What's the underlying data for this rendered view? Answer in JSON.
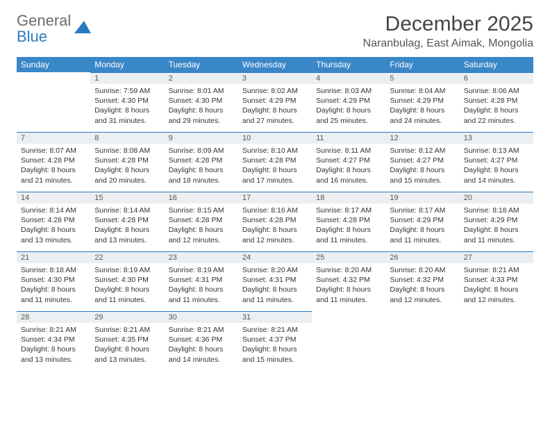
{
  "brand": {
    "word1": "General",
    "word2": "Blue",
    "logo_color": "#2a7ac0",
    "text_color": "#6b6b6b"
  },
  "title": "December 2025",
  "location": "Naranbulag, East Aimak, Mongolia",
  "colors": {
    "header_bg": "#3a87c8",
    "daynum_bg": "#eceff1",
    "border": "#2a7ac0"
  },
  "weekdays": [
    "Sunday",
    "Monday",
    "Tuesday",
    "Wednesday",
    "Thursday",
    "Friday",
    "Saturday"
  ],
  "cells": [
    {
      "n": "",
      "sr": "",
      "ss": "",
      "dl": ""
    },
    {
      "n": "1",
      "sr": "Sunrise: 7:59 AM",
      "ss": "Sunset: 4:30 PM",
      "dl": "Daylight: 8 hours and 31 minutes."
    },
    {
      "n": "2",
      "sr": "Sunrise: 8:01 AM",
      "ss": "Sunset: 4:30 PM",
      "dl": "Daylight: 8 hours and 29 minutes."
    },
    {
      "n": "3",
      "sr": "Sunrise: 8:02 AM",
      "ss": "Sunset: 4:29 PM",
      "dl": "Daylight: 8 hours and 27 minutes."
    },
    {
      "n": "4",
      "sr": "Sunrise: 8:03 AM",
      "ss": "Sunset: 4:29 PM",
      "dl": "Daylight: 8 hours and 25 minutes."
    },
    {
      "n": "5",
      "sr": "Sunrise: 8:04 AM",
      "ss": "Sunset: 4:29 PM",
      "dl": "Daylight: 8 hours and 24 minutes."
    },
    {
      "n": "6",
      "sr": "Sunrise: 8:06 AM",
      "ss": "Sunset: 4:28 PM",
      "dl": "Daylight: 8 hours and 22 minutes."
    },
    {
      "n": "7",
      "sr": "Sunrise: 8:07 AM",
      "ss": "Sunset: 4:28 PM",
      "dl": "Daylight: 8 hours and 21 minutes."
    },
    {
      "n": "8",
      "sr": "Sunrise: 8:08 AM",
      "ss": "Sunset: 4:28 PM",
      "dl": "Daylight: 8 hours and 20 minutes."
    },
    {
      "n": "9",
      "sr": "Sunrise: 8:09 AM",
      "ss": "Sunset: 4:28 PM",
      "dl": "Daylight: 8 hours and 18 minutes."
    },
    {
      "n": "10",
      "sr": "Sunrise: 8:10 AM",
      "ss": "Sunset: 4:28 PM",
      "dl": "Daylight: 8 hours and 17 minutes."
    },
    {
      "n": "11",
      "sr": "Sunrise: 8:11 AM",
      "ss": "Sunset: 4:27 PM",
      "dl": "Daylight: 8 hours and 16 minutes."
    },
    {
      "n": "12",
      "sr": "Sunrise: 8:12 AM",
      "ss": "Sunset: 4:27 PM",
      "dl": "Daylight: 8 hours and 15 minutes."
    },
    {
      "n": "13",
      "sr": "Sunrise: 8:13 AM",
      "ss": "Sunset: 4:27 PM",
      "dl": "Daylight: 8 hours and 14 minutes."
    },
    {
      "n": "14",
      "sr": "Sunrise: 8:14 AM",
      "ss": "Sunset: 4:28 PM",
      "dl": "Daylight: 8 hours and 13 minutes."
    },
    {
      "n": "15",
      "sr": "Sunrise: 8:14 AM",
      "ss": "Sunset: 4:28 PM",
      "dl": "Daylight: 8 hours and 13 minutes."
    },
    {
      "n": "16",
      "sr": "Sunrise: 8:15 AM",
      "ss": "Sunset: 4:28 PM",
      "dl": "Daylight: 8 hours and 12 minutes."
    },
    {
      "n": "17",
      "sr": "Sunrise: 8:16 AM",
      "ss": "Sunset: 4:28 PM",
      "dl": "Daylight: 8 hours and 12 minutes."
    },
    {
      "n": "18",
      "sr": "Sunrise: 8:17 AM",
      "ss": "Sunset: 4:28 PM",
      "dl": "Daylight: 8 hours and 11 minutes."
    },
    {
      "n": "19",
      "sr": "Sunrise: 8:17 AM",
      "ss": "Sunset: 4:29 PM",
      "dl": "Daylight: 8 hours and 11 minutes."
    },
    {
      "n": "20",
      "sr": "Sunrise: 8:18 AM",
      "ss": "Sunset: 4:29 PM",
      "dl": "Daylight: 8 hours and 11 minutes."
    },
    {
      "n": "21",
      "sr": "Sunrise: 8:18 AM",
      "ss": "Sunset: 4:30 PM",
      "dl": "Daylight: 8 hours and 11 minutes."
    },
    {
      "n": "22",
      "sr": "Sunrise: 8:19 AM",
      "ss": "Sunset: 4:30 PM",
      "dl": "Daylight: 8 hours and 11 minutes."
    },
    {
      "n": "23",
      "sr": "Sunrise: 8:19 AM",
      "ss": "Sunset: 4:31 PM",
      "dl": "Daylight: 8 hours and 11 minutes."
    },
    {
      "n": "24",
      "sr": "Sunrise: 8:20 AM",
      "ss": "Sunset: 4:31 PM",
      "dl": "Daylight: 8 hours and 11 minutes."
    },
    {
      "n": "25",
      "sr": "Sunrise: 8:20 AM",
      "ss": "Sunset: 4:32 PM",
      "dl": "Daylight: 8 hours and 11 minutes."
    },
    {
      "n": "26",
      "sr": "Sunrise: 8:20 AM",
      "ss": "Sunset: 4:32 PM",
      "dl": "Daylight: 8 hours and 12 minutes."
    },
    {
      "n": "27",
      "sr": "Sunrise: 8:21 AM",
      "ss": "Sunset: 4:33 PM",
      "dl": "Daylight: 8 hours and 12 minutes."
    },
    {
      "n": "28",
      "sr": "Sunrise: 8:21 AM",
      "ss": "Sunset: 4:34 PM",
      "dl": "Daylight: 8 hours and 13 minutes."
    },
    {
      "n": "29",
      "sr": "Sunrise: 8:21 AM",
      "ss": "Sunset: 4:35 PM",
      "dl": "Daylight: 8 hours and 13 minutes."
    },
    {
      "n": "30",
      "sr": "Sunrise: 8:21 AM",
      "ss": "Sunset: 4:36 PM",
      "dl": "Daylight: 8 hours and 14 minutes."
    },
    {
      "n": "31",
      "sr": "Sunrise: 8:21 AM",
      "ss": "Sunset: 4:37 PM",
      "dl": "Daylight: 8 hours and 15 minutes."
    },
    {
      "n": "",
      "sr": "",
      "ss": "",
      "dl": ""
    },
    {
      "n": "",
      "sr": "",
      "ss": "",
      "dl": ""
    },
    {
      "n": "",
      "sr": "",
      "ss": "",
      "dl": ""
    }
  ]
}
